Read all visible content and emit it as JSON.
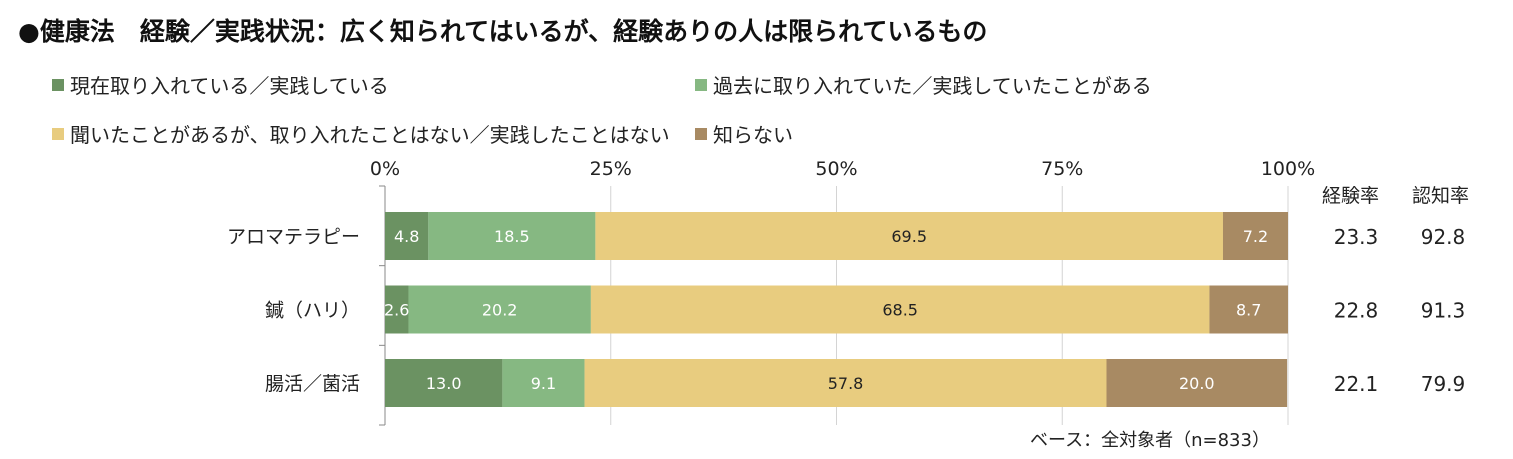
{
  "title": "●健康法　経験／実践状況：広く知られてはいるが、経験ありの人は限られているもの",
  "legend": [
    {
      "label": "現在取り入れている／実践している",
      "color": "#6b9262"
    },
    {
      "label": "過去に取り入れていた／実践していたことがある",
      "color": "#86b882"
    },
    {
      "label": "聞いたことがあるが、取り入れたことはない／実践したことはない",
      "color": "#e8cc7f"
    },
    {
      "label": "知らない",
      "color": "#a88a63"
    }
  ],
  "rate_headers": {
    "experience": "経験率",
    "awareness": "認知率"
  },
  "note": "ベース：全対象者（n=833）",
  "chart_data": {
    "type": "bar",
    "orientation": "horizontal",
    "stacked": true,
    "xlim": [
      0,
      100
    ],
    "x_ticks": [
      "0%",
      "25%",
      "50%",
      "75%",
      "100%"
    ],
    "categories": [
      "アロマテラピー",
      "鍼（ハリ）",
      "腸活／菌活"
    ],
    "series": [
      {
        "name": "現在取り入れている／実践している",
        "values": [
          4.8,
          2.6,
          13.0
        ],
        "labels": [
          "4.8",
          "2.6",
          "13.0"
        ]
      },
      {
        "name": "過去に取り入れていた／実践していたことがある",
        "values": [
          18.5,
          20.2,
          9.1
        ],
        "labels": [
          "18.5",
          "20.2",
          "9.1"
        ]
      },
      {
        "name": "聞いたことがあるが、取り入れたことはない／実践したことはない",
        "values": [
          69.5,
          68.5,
          57.8
        ],
        "labels": [
          "69.5",
          "68.5",
          "57.8"
        ]
      },
      {
        "name": "知らない",
        "values": [
          7.2,
          8.7,
          20.0
        ],
        "labels": [
          "7.2",
          "8.7",
          "20.0"
        ]
      }
    ],
    "experience_rate": [
      "23.3",
      "22.8",
      "22.1"
    ],
    "awareness_rate": [
      "92.8",
      "91.3",
      "79.9"
    ],
    "grid": true
  }
}
